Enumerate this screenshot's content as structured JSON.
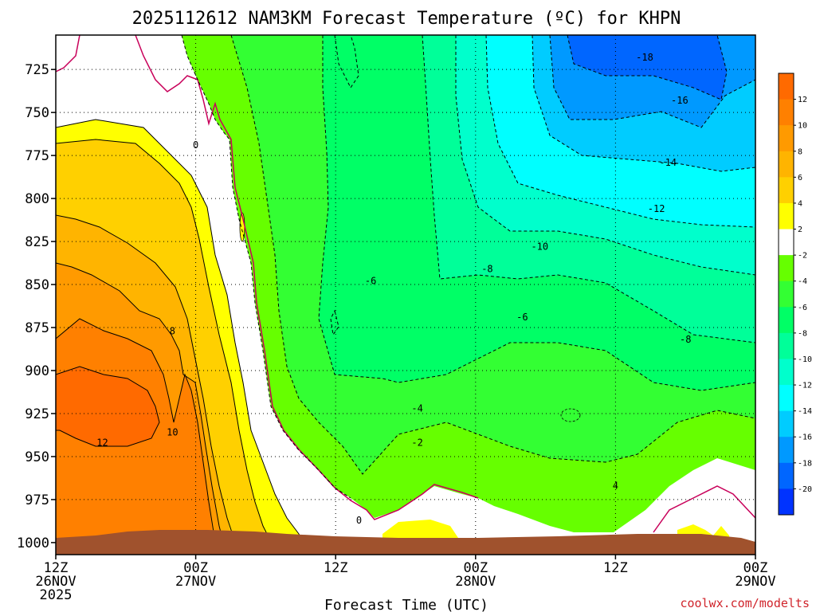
{
  "chart_data": {
    "type": "heatmap",
    "title": "2025112612 NAM3KM Forecast Temperature (ºC) for KHPN",
    "xlabel": "Forecast Time (UTC)",
    "ylabel": "",
    "credit": "coolwx.com/modelts",
    "x_ticks": [
      {
        "hours": 0,
        "line1": "12Z",
        "line2": "26NOV",
        "line3": "2025"
      },
      {
        "hours": 12,
        "line1": "00Z",
        "line2": "27NOV",
        "line3": ""
      },
      {
        "hours": 24,
        "line1": "12Z",
        "line2": "",
        "line3": ""
      },
      {
        "hours": 36,
        "line1": "00Z",
        "line2": "28NOV",
        "line3": ""
      },
      {
        "hours": 48,
        "line1": "12Z",
        "line2": "",
        "line3": ""
      },
      {
        "hours": 60,
        "line1": "00Z",
        "line2": "29NOV",
        "line3": ""
      }
    ],
    "xlim": [
      0,
      60
    ],
    "y_ticks": [
      725,
      750,
      775,
      800,
      825,
      850,
      875,
      900,
      925,
      950,
      975,
      1000
    ],
    "y_tick_labels": [
      "725",
      "750",
      "775",
      "800",
      "825",
      "850",
      "875",
      "900",
      "925",
      "950",
      "975",
      "1000"
    ],
    "ylim": [
      705,
      1007
    ],
    "colorbar": {
      "unit": "ºC",
      "tick_labels": [
        "12",
        "10",
        "8",
        "6",
        "4",
        "2",
        "-2",
        "-4",
        "-6",
        "-8",
        "-10",
        "-12",
        "-14",
        "-16",
        "-18",
        "-20"
      ],
      "colors": [
        "#ff6a00",
        "#ff8000",
        "#ff9a00",
        "#ffb400",
        "#ffd000",
        "#ffff00",
        "#ffffff",
        "#66ff00",
        "#33ff33",
        "#00ff66",
        "#00ff99",
        "#00ffcc",
        "#00ffff",
        "#00ccff",
        "#0099ff",
        "#0066ff",
        "#0033ff"
      ]
    },
    "contour_labels": [
      {
        "text": "0",
        "hours": 12.0,
        "p": 769
      },
      {
        "text": "8",
        "hours": 10.0,
        "p": 877
      },
      {
        "text": "12",
        "hours": 4.0,
        "p": 942
      },
      {
        "text": "10",
        "hours": 10.0,
        "p": 936
      },
      {
        "text": "-18",
        "hours": 50.5,
        "p": 718
      },
      {
        "text": "-16",
        "hours": 53.5,
        "p": 743
      },
      {
        "text": "-14",
        "hours": 52.5,
        "p": 779
      },
      {
        "text": "-12",
        "hours": 51.5,
        "p": 806
      },
      {
        "text": "-10",
        "hours": 41.5,
        "p": 828
      },
      {
        "text": "-8",
        "hours": 37.0,
        "p": 841
      },
      {
        "text": "-6",
        "hours": 27.0,
        "p": 848
      },
      {
        "text": "-6",
        "hours": 40.0,
        "p": 869
      },
      {
        "text": "-8",
        "hours": 54.0,
        "p": 882
      },
      {
        "text": "-4",
        "hours": 31.0,
        "p": 922
      },
      {
        "text": "-2",
        "hours": 31.0,
        "p": 942
      },
      {
        "text": "0",
        "hours": 26.0,
        "p": 987
      },
      {
        "text": "4",
        "hours": 48.0,
        "p": 967
      }
    ]
  }
}
